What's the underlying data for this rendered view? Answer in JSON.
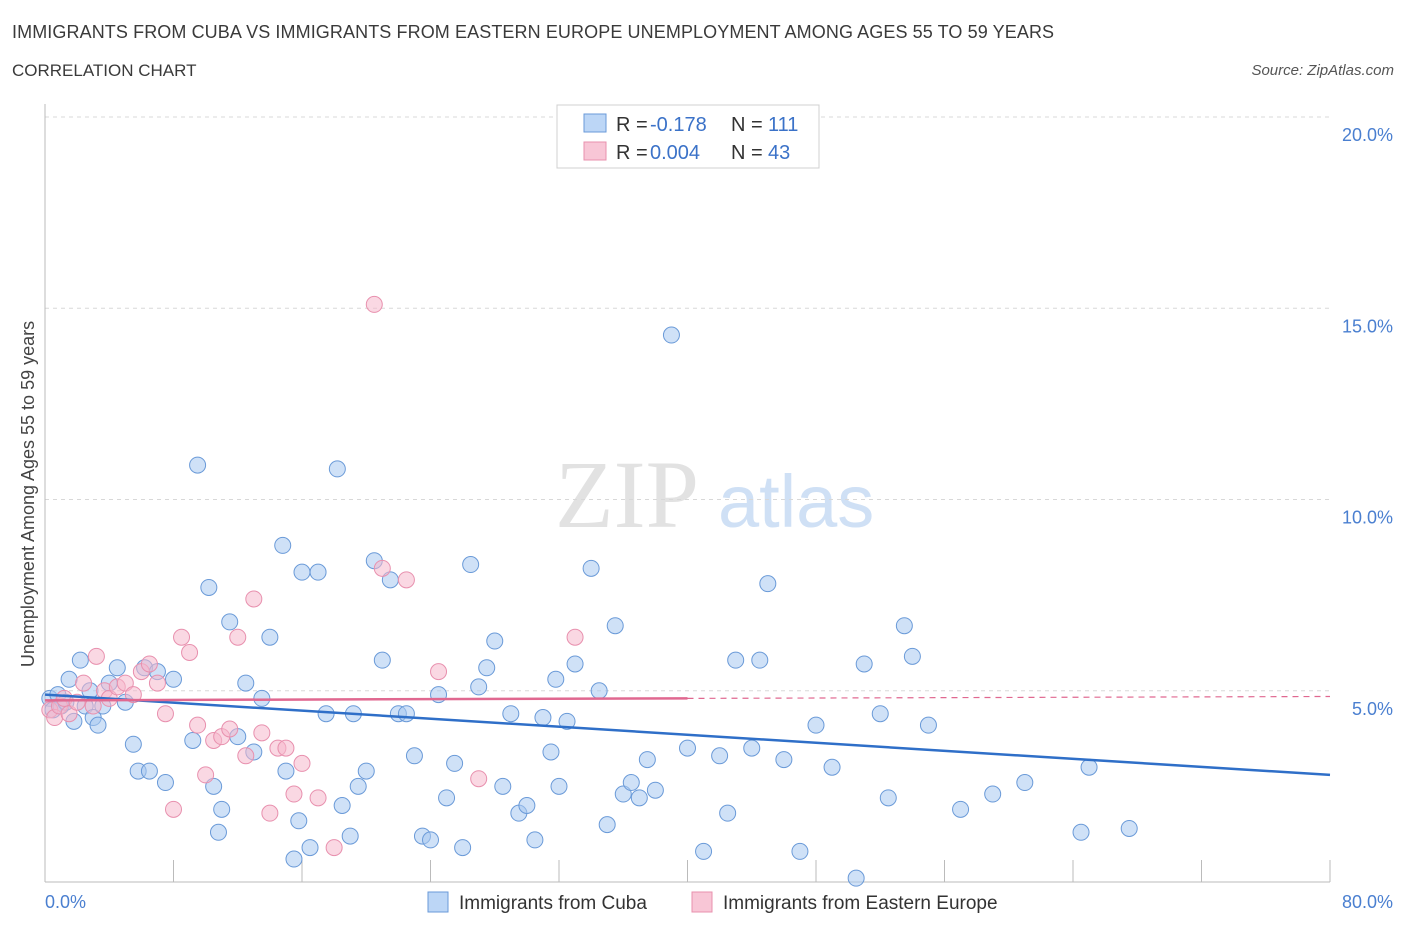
{
  "header": {
    "title": "IMMIGRANTS FROM CUBA VS IMMIGRANTS FROM EASTERN EUROPE UNEMPLOYMENT AMONG AGES 55 TO 59 YEARS",
    "subtitle": "CORRELATION CHART",
    "source": "Source: ZipAtlas.com"
  },
  "watermark": {
    "zip": "ZIP",
    "atlas": "atlas"
  },
  "legend_top": {
    "r_label": "R =",
    "n_label": "N =",
    "rows": [
      {
        "series": "Immigrants from Cuba",
        "r": "-0.178",
        "n": "111"
      },
      {
        "series": "Immigrants from Eastern Europe",
        "r": "0.004",
        "n": "43"
      }
    ]
  },
  "colors": {
    "cuba_fill": "#a8c8f0",
    "cuba_stroke": "#6a9ad8",
    "cuba_line": "#2f6fc8",
    "ee_fill": "#f5b8cc",
    "ee_stroke": "#e890ae",
    "ee_line": "#e06890",
    "grid": "#d8d8d8",
    "axis_text": "#4a7fd0"
  },
  "chart_data": {
    "type": "scatter",
    "title": "IMMIGRANTS FROM CUBA VS IMMIGRANTS FROM EASTERN EUROPE UNEMPLOYMENT AMONG AGES 55 TO 59 YEARS",
    "xlabel": "",
    "ylabel": "Unemployment Among Ages 55 to 59 years",
    "xlim": [
      0,
      80
    ],
    "ylim": [
      0,
      20
    ],
    "x_tick_labels": [
      "0.0%",
      "80.0%"
    ],
    "y_ticks": [
      5,
      10,
      15,
      20
    ],
    "y_tick_labels": [
      "5.0%",
      "10.0%",
      "15.0%",
      "20.0%"
    ],
    "grid": true,
    "legend_position": "bottom",
    "series": [
      {
        "name": "Immigrants from Cuba",
        "r": -0.178,
        "n": 111,
        "trend": {
          "x": [
            0,
            80
          ],
          "y": [
            4.9,
            2.8
          ]
        },
        "points": [
          [
            0.3,
            4.8
          ],
          [
            0.5,
            4.5
          ],
          [
            0.8,
            4.9
          ],
          [
            1.0,
            4.6
          ],
          [
            1.3,
            4.7
          ],
          [
            1.5,
            5.3
          ],
          [
            1.8,
            4.2
          ],
          [
            2.2,
            5.8
          ],
          [
            2.5,
            4.6
          ],
          [
            2.8,
            5.0
          ],
          [
            3.0,
            4.3
          ],
          [
            3.3,
            4.1
          ],
          [
            3.6,
            4.6
          ],
          [
            4.0,
            5.2
          ],
          [
            4.5,
            5.6
          ],
          [
            5.0,
            4.7
          ],
          [
            5.5,
            3.6
          ],
          [
            5.8,
            2.9
          ],
          [
            6.2,
            5.6
          ],
          [
            6.5,
            2.9
          ],
          [
            7.0,
            5.5
          ],
          [
            7.5,
            2.6
          ],
          [
            8.0,
            5.3
          ],
          [
            9.5,
            10.9
          ],
          [
            10.2,
            7.7
          ],
          [
            10.5,
            2.5
          ],
          [
            10.8,
            1.3
          ],
          [
            11.0,
            1.9
          ],
          [
            11.5,
            6.8
          ],
          [
            12.0,
            3.8
          ],
          [
            12.5,
            5.2
          ],
          [
            13.0,
            3.4
          ],
          [
            13.5,
            4.8
          ],
          [
            14.0,
            6.4
          ],
          [
            14.8,
            8.8
          ],
          [
            15.0,
            2.9
          ],
          [
            15.5,
            0.6
          ],
          [
            16.0,
            8.1
          ],
          [
            16.5,
            0.9
          ],
          [
            17.0,
            8.1
          ],
          [
            17.5,
            4.4
          ],
          [
            18.2,
            10.8
          ],
          [
            18.5,
            2.0
          ],
          [
            19.0,
            1.2
          ],
          [
            19.5,
            2.5
          ],
          [
            20.0,
            2.9
          ],
          [
            20.5,
            8.4
          ],
          [
            21.0,
            5.8
          ],
          [
            21.5,
            7.9
          ],
          [
            22.0,
            4.4
          ],
          [
            22.5,
            4.4
          ],
          [
            23.0,
            3.3
          ],
          [
            23.5,
            1.2
          ],
          [
            24.0,
            1.1
          ],
          [
            24.5,
            4.9
          ],
          [
            25.0,
            2.2
          ],
          [
            25.5,
            3.1
          ],
          [
            26.0,
            0.9
          ],
          [
            26.5,
            8.3
          ],
          [
            27.0,
            5.1
          ],
          [
            27.5,
            5.6
          ],
          [
            28.0,
            6.3
          ],
          [
            28.5,
            2.5
          ],
          [
            29.0,
            4.4
          ],
          [
            29.5,
            1.8
          ],
          [
            30.0,
            2.0
          ],
          [
            30.5,
            1.1
          ],
          [
            31.0,
            4.3
          ],
          [
            31.5,
            3.4
          ],
          [
            31.8,
            5.3
          ],
          [
            32.0,
            2.5
          ],
          [
            32.5,
            4.2
          ],
          [
            33.0,
            5.7
          ],
          [
            34.0,
            8.2
          ],
          [
            34.5,
            5.0
          ],
          [
            35.0,
            1.5
          ],
          [
            35.5,
            6.7
          ],
          [
            36.0,
            2.3
          ],
          [
            36.5,
            2.6
          ],
          [
            37.0,
            2.2
          ],
          [
            37.5,
            3.2
          ],
          [
            38.0,
            2.4
          ],
          [
            39.0,
            14.3
          ],
          [
            40.0,
            3.5
          ],
          [
            41.0,
            0.8
          ],
          [
            42.0,
            3.3
          ],
          [
            42.5,
            1.8
          ],
          [
            43.0,
            5.8
          ],
          [
            44.0,
            3.5
          ],
          [
            44.5,
            5.8
          ],
          [
            45.0,
            7.8
          ],
          [
            46.0,
            3.2
          ],
          [
            47.0,
            0.8
          ],
          [
            48.0,
            4.1
          ],
          [
            49.0,
            3.0
          ],
          [
            50.5,
            0.1
          ],
          [
            51.0,
            5.7
          ],
          [
            52.0,
            4.4
          ],
          [
            52.5,
            2.2
          ],
          [
            53.5,
            6.7
          ],
          [
            54.0,
            5.9
          ],
          [
            55.0,
            4.1
          ],
          [
            57.0,
            1.9
          ],
          [
            59.0,
            2.3
          ],
          [
            61.0,
            2.6
          ],
          [
            64.5,
            1.3
          ],
          [
            65.0,
            3.0
          ],
          [
            67.5,
            1.4
          ],
          [
            15.8,
            1.6
          ],
          [
            9.2,
            3.7
          ],
          [
            19.2,
            4.4
          ]
        ]
      },
      {
        "name": "Immigrants from Eastern Europe",
        "r": 0.004,
        "n": 43,
        "trend": {
          "x": [
            0,
            40
          ],
          "y": [
            4.75,
            4.8
          ],
          "dashed_to": [
            80,
            4.85
          ]
        },
        "points": [
          [
            0.3,
            4.5
          ],
          [
            0.6,
            4.3
          ],
          [
            0.9,
            4.6
          ],
          [
            1.2,
            4.8
          ],
          [
            1.5,
            4.4
          ],
          [
            2.0,
            4.7
          ],
          [
            2.4,
            5.2
          ],
          [
            3.0,
            4.6
          ],
          [
            3.2,
            5.9
          ],
          [
            3.7,
            5.0
          ],
          [
            4.0,
            4.8
          ],
          [
            4.5,
            5.1
          ],
          [
            5.0,
            5.2
          ],
          [
            5.5,
            4.9
          ],
          [
            6.0,
            5.5
          ],
          [
            6.5,
            5.7
          ],
          [
            7.0,
            5.2
          ],
          [
            7.5,
            4.4
          ],
          [
            8.0,
            1.9
          ],
          [
            8.5,
            6.4
          ],
          [
            9.0,
            6.0
          ],
          [
            9.5,
            4.1
          ],
          [
            10.0,
            2.8
          ],
          [
            10.5,
            3.7
          ],
          [
            11.0,
            3.8
          ],
          [
            11.5,
            4.0
          ],
          [
            12.0,
            6.4
          ],
          [
            12.5,
            3.3
          ],
          [
            13.0,
            7.4
          ],
          [
            13.5,
            3.9
          ],
          [
            14.0,
            1.8
          ],
          [
            14.5,
            3.5
          ],
          [
            15.0,
            3.5
          ],
          [
            15.5,
            2.3
          ],
          [
            16.0,
            3.1
          ],
          [
            17.0,
            2.2
          ],
          [
            18.0,
            0.9
          ],
          [
            20.5,
            15.1
          ],
          [
            21.0,
            8.2
          ],
          [
            22.5,
            7.9
          ],
          [
            24.5,
            5.5
          ],
          [
            27.0,
            2.7
          ],
          [
            33.0,
            6.4
          ]
        ]
      }
    ]
  },
  "bottom_legend": [
    {
      "label": "Immigrants from Cuba"
    },
    {
      "label": "Immigrants from Eastern Europe"
    }
  ]
}
